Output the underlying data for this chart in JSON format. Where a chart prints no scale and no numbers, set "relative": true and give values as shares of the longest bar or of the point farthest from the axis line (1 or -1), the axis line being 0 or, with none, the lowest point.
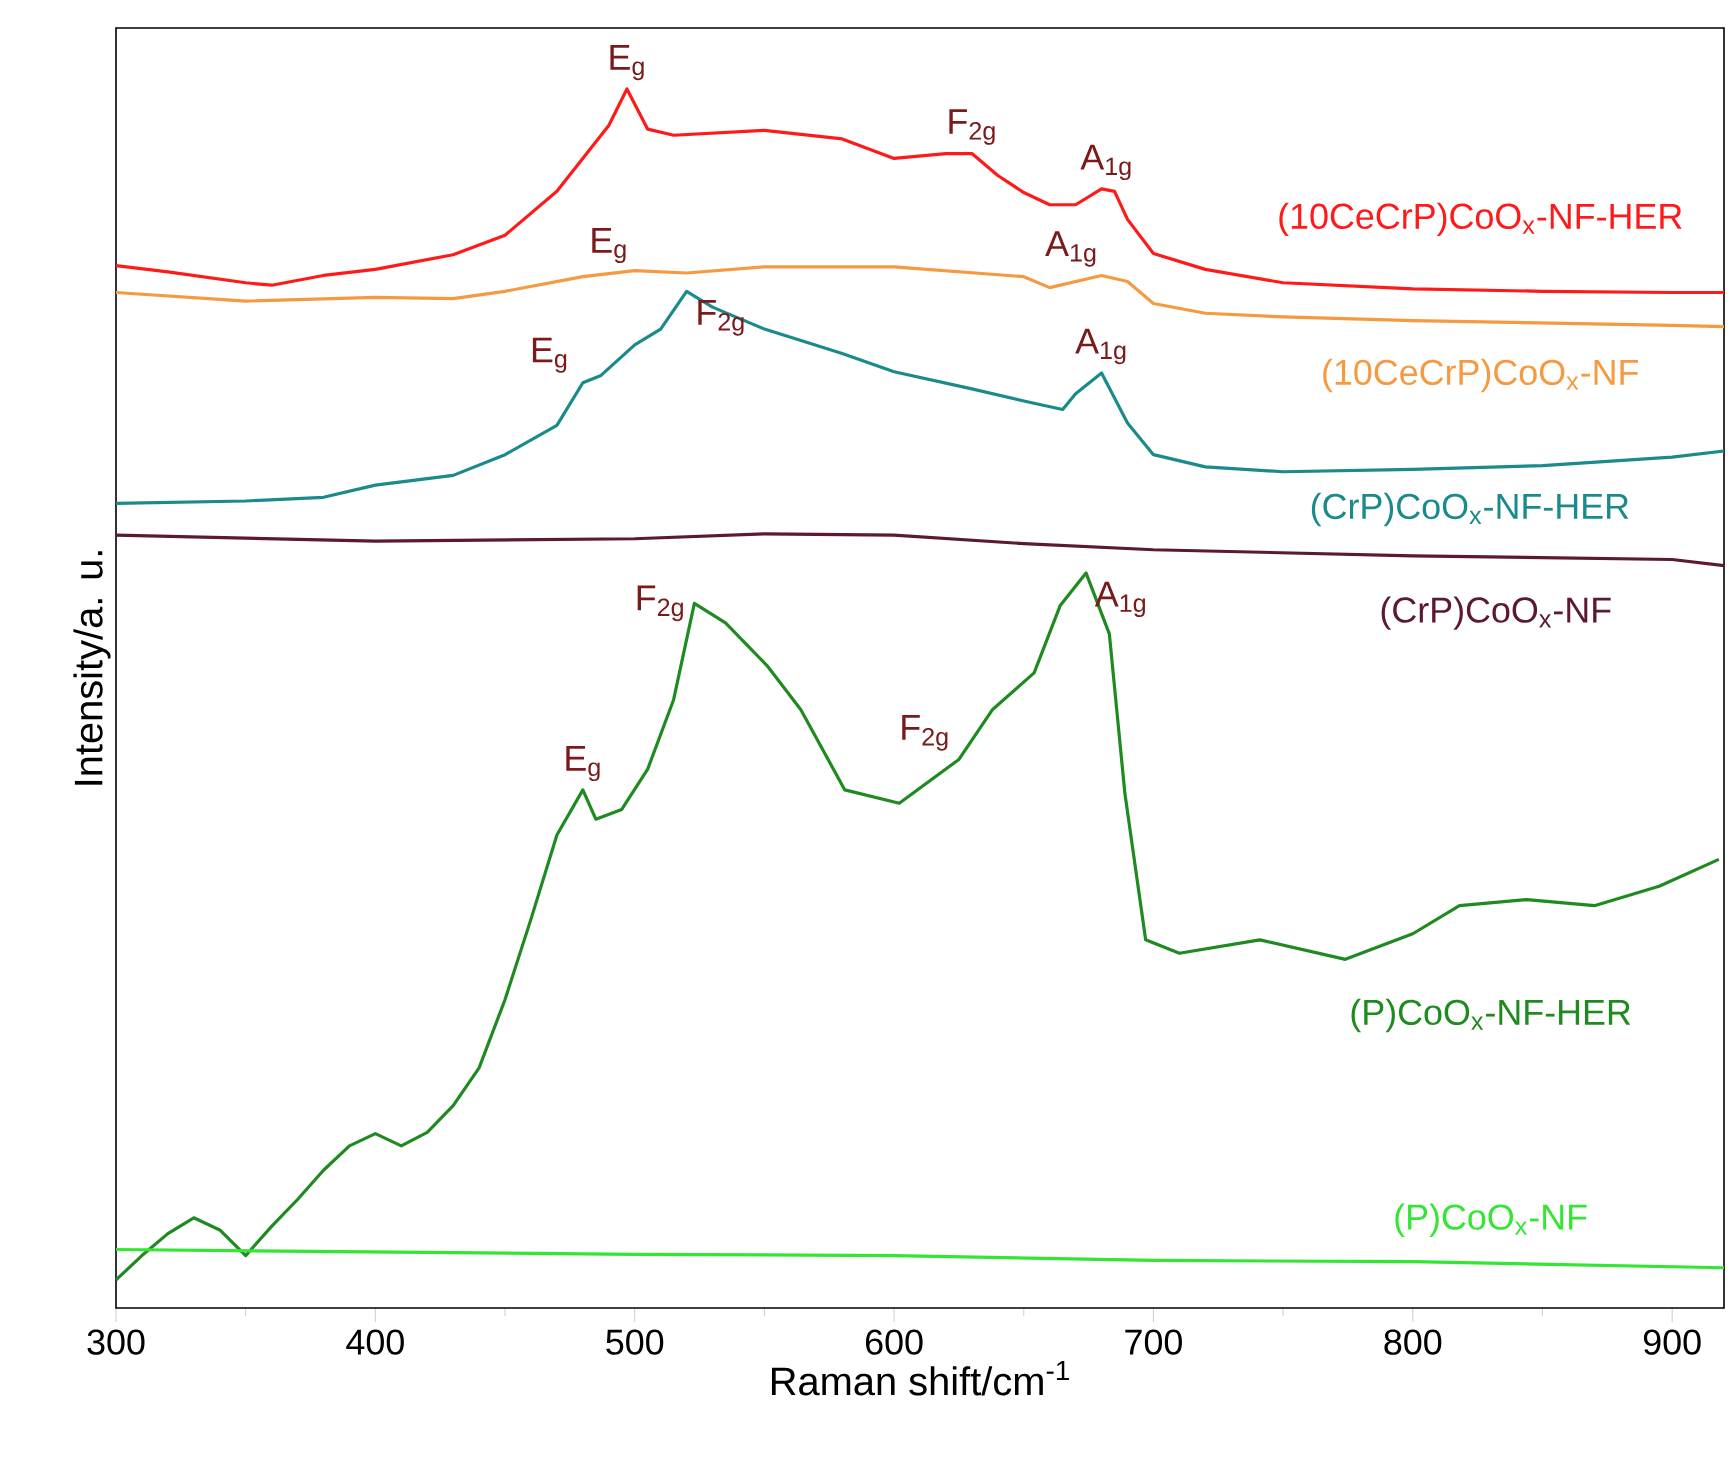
{
  "chart_data": {
    "type": "line",
    "xlabel": "Raman shift/cm$^{-1}$",
    "ylabel": "Intensity/a. u.",
    "relative": true,
    "xlim": [
      300,
      920
    ],
    "xticks": [
      300,
      400,
      500,
      600,
      700,
      800,
      900
    ],
    "series": [
      {
        "name": "(10CeCrP)CoO$_{x}$-NF-HER",
        "color": "#ff1a1a",
        "x": [
          300,
          320,
          350,
          360,
          380,
          400,
          430,
          450,
          470,
          480,
          490,
          497,
          505,
          515,
          550,
          580,
          600,
          620,
          630,
          640,
          650,
          660,
          670,
          680,
          685,
          690,
          700,
          720,
          750,
          800,
          850,
          900,
          920
        ],
        "values": [
          0.855,
          0.85,
          0.841,
          0.839,
          0.847,
          0.852,
          0.864,
          0.88,
          0.916,
          0.943,
          0.97,
          1.0,
          0.967,
          0.962,
          0.966,
          0.959,
          0.943,
          0.947,
          0.947,
          0.929,
          0.915,
          0.905,
          0.905,
          0.918,
          0.916,
          0.893,
          0.865,
          0.852,
          0.841,
          0.836,
          0.834,
          0.833,
          0.833
        ]
      },
      {
        "name": "(10CeCrP)CoO$_{x}$-NF",
        "color": "#f59a40",
        "x": [
          300,
          350,
          400,
          430,
          450,
          480,
          500,
          520,
          550,
          600,
          650,
          660,
          680,
          690,
          700,
          720,
          750,
          800,
          850,
          900,
          920
        ],
        "values": [
          0.833,
          0.826,
          0.829,
          0.828,
          0.834,
          0.846,
          0.851,
          0.849,
          0.854,
          0.854,
          0.846,
          0.837,
          0.847,
          0.842,
          0.824,
          0.816,
          0.813,
          0.81,
          0.808,
          0.806,
          0.805
        ]
      },
      {
        "name": "(CrP)CoO$_{x}$-NF-HER",
        "color": "#1a8a8a",
        "x": [
          300,
          350,
          380,
          400,
          430,
          450,
          470,
          480,
          487,
          500,
          510,
          520,
          530,
          550,
          580,
          600,
          630,
          650,
          665,
          670,
          680,
          690,
          700,
          720,
          750,
          800,
          850,
          900,
          920
        ],
        "values": [
          0.66,
          0.662,
          0.665,
          0.675,
          0.683,
          0.7,
          0.724,
          0.759,
          0.765,
          0.79,
          0.803,
          0.834,
          0.821,
          0.803,
          0.783,
          0.768,
          0.754,
          0.744,
          0.737,
          0.75,
          0.767,
          0.726,
          0.7,
          0.69,
          0.686,
          0.688,
          0.691,
          0.698,
          0.703
        ]
      },
      {
        "name": "(CrP)CoO$_{x}$-NF",
        "color": "#5c1a2e",
        "x": [
          300,
          400,
          500,
          550,
          600,
          650,
          700,
          800,
          900,
          920
        ],
        "values": [
          0.634,
          0.629,
          0.631,
          0.635,
          0.634,
          0.627,
          0.622,
          0.617,
          0.614,
          0.609
        ]
      },
      {
        "name": "(P)CoO$_{x}$-NF-HER",
        "color": "#1f8a1f",
        "x": [
          300,
          310,
          320,
          330,
          340,
          350,
          360,
          370,
          380,
          390,
          400,
          410,
          420,
          430,
          440,
          450,
          460,
          470,
          480,
          485,
          495,
          505,
          515,
          523,
          535,
          551,
          564,
          581,
          602,
          625,
          638,
          654,
          664,
          674,
          683,
          689,
          697,
          710,
          741,
          774,
          800,
          818,
          844,
          870,
          895,
          918
        ],
        "values": [
          0.023,
          0.043,
          0.061,
          0.074,
          0.064,
          0.043,
          0.067,
          0.089,
          0.113,
          0.133,
          0.143,
          0.133,
          0.144,
          0.166,
          0.197,
          0.253,
          0.319,
          0.388,
          0.425,
          0.401,
          0.409,
          0.442,
          0.499,
          0.578,
          0.562,
          0.527,
          0.491,
          0.425,
          0.414,
          0.45,
          0.491,
          0.521,
          0.576,
          0.603,
          0.553,
          0.422,
          0.302,
          0.291,
          0.302,
          0.286,
          0.307,
          0.33,
          0.335,
          0.33,
          0.346,
          0.368
        ]
      },
      {
        "name": "(P)CoO$_{x}$-NF",
        "color": "#33e633",
        "x": [
          300,
          400,
          500,
          600,
          700,
          800,
          920
        ],
        "values": [
          0.048,
          0.046,
          0.044,
          0.043,
          0.039,
          0.038,
          0.033
        ]
      }
    ],
    "annotations": [
      {
        "text": "E$_{g}$",
        "x": 497,
        "y": 1.0
      },
      {
        "text": "F$_{2g}$",
        "x": 630,
        "y": 0.947
      },
      {
        "text": "A$_{1g}$",
        "x": 682,
        "y": 0.918
      },
      {
        "text": "E$_{g}$",
        "x": 490,
        "y": 0.85
      },
      {
        "text": "A$_{1g}$",
        "x": 682,
        "y": 0.847
      },
      {
        "text": "E$_{g}$",
        "x": 478,
        "y": 0.76
      },
      {
        "text": "F$_{2g}$",
        "x": 520,
        "y": 0.834
      },
      {
        "text": "A$_{1g}$",
        "x": 680,
        "y": 0.767
      },
      {
        "text": "E$_{g}$",
        "x": 480,
        "y": 0.425
      },
      {
        "text": "F$_{2g}$",
        "x": 523,
        "y": 0.578
      },
      {
        "text": "F$_{2g}$",
        "x": 625,
        "y": 0.45
      },
      {
        "text": "A$_{1g}$",
        "x": 674,
        "y": 0.603
      }
    ]
  }
}
